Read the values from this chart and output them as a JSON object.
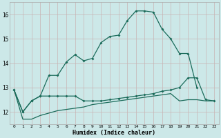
{
  "xlabel": "Humidex (Indice chaleur)",
  "background_color": "#cce8e8",
  "grid_color": "#c8b4b4",
  "line_color": "#1a6b5a",
  "x_values": [
    0,
    1,
    2,
    3,
    4,
    5,
    6,
    7,
    8,
    9,
    10,
    11,
    12,
    13,
    14,
    15,
    16,
    17,
    18,
    19,
    20,
    21,
    22,
    23
  ],
  "series1": [
    12.9,
    12.0,
    12.45,
    12.65,
    13.5,
    13.5,
    14.05,
    14.35,
    14.1,
    14.2,
    14.85,
    15.1,
    15.15,
    15.75,
    16.15,
    16.15,
    16.1,
    15.4,
    15.0,
    14.4,
    14.4,
    13.0,
    null,
    null
  ],
  "series2": [
    12.9,
    12.0,
    12.45,
    12.65,
    12.65,
    12.65,
    12.65,
    12.65,
    12.45,
    12.45,
    12.45,
    12.5,
    12.55,
    12.6,
    12.65,
    12.7,
    12.75,
    12.85,
    12.9,
    13.0,
    13.4,
    13.4,
    12.5,
    12.45
  ],
  "series3": [
    12.9,
    11.7,
    11.7,
    11.85,
    11.95,
    12.05,
    12.1,
    12.15,
    12.2,
    12.3,
    12.35,
    12.4,
    12.45,
    12.5,
    12.55,
    12.6,
    12.65,
    12.7,
    12.75,
    12.45,
    12.5,
    12.5,
    12.45,
    12.45
  ],
  "ylim": [
    11.5,
    16.5
  ],
  "yticks": [
    12,
    13,
    14,
    15,
    16
  ],
  "xlim": [
    -0.5,
    23.5
  ]
}
